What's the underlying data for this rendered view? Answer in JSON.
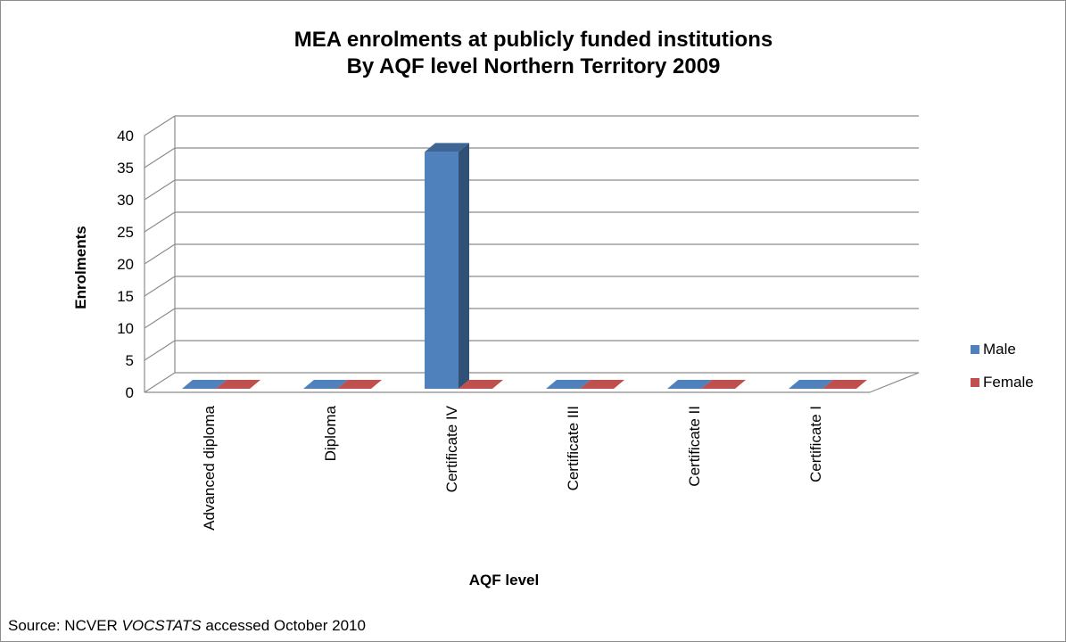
{
  "chart_data": {
    "type": "bar",
    "title": [
      "MEA enrolments at publicly funded institutions",
      "By AQF level Northern Territory 2009"
    ],
    "xlabel": "AQF level",
    "ylabel": "Enrolments",
    "categories": [
      "Advanced diploma",
      "Diploma",
      "Certificate IV",
      "Certificate III",
      "Certificate II",
      "Certificate I"
    ],
    "series": [
      {
        "name": "Male",
        "color": "#4f81bd",
        "values": [
          0,
          0,
          38,
          0,
          0,
          0
        ]
      },
      {
        "name": "Female",
        "color": "#c0504d",
        "values": [
          0,
          0,
          0,
          0,
          0,
          0
        ]
      }
    ],
    "ylim": [
      0,
      40
    ],
    "yticks": [
      0,
      5,
      10,
      15,
      20,
      25,
      30,
      35,
      40
    ],
    "grid": true,
    "legend": "right",
    "three_d": true
  },
  "source": {
    "prefix": "Source: NCVER ",
    "italic": "VOCSTATS",
    "suffix": " accessed October 2010"
  }
}
